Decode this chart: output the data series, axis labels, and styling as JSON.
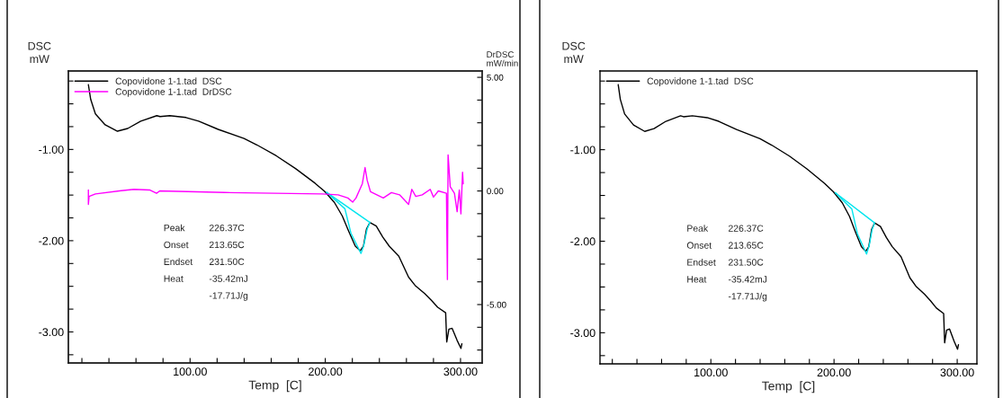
{
  "chart_data": [
    {
      "type": "line",
      "xlabel": "Temp  [C]",
      "ylabel": "DSC\nmW",
      "y2label": "DrDSC\nmW/min",
      "legend": "top left",
      "grid": false,
      "xlim": [
        10,
        316
      ],
      "ylim": [
        -3.34,
        -0.14
      ],
      "y2lim": [
        -7.57,
        5.28
      ],
      "xticks": [
        {
          "value": 20,
          "label": null
        },
        {
          "value": 40,
          "label": null
        },
        {
          "value": 60,
          "label": null
        },
        {
          "value": 80,
          "label": null
        },
        {
          "value": 100,
          "label": "100.00"
        },
        {
          "value": 120,
          "label": null
        },
        {
          "value": 140,
          "label": null
        },
        {
          "value": 160,
          "label": null
        },
        {
          "value": 180,
          "label": null
        },
        {
          "value": 200,
          "label": "200.00"
        },
        {
          "value": 220,
          "label": null
        },
        {
          "value": 240,
          "label": null
        },
        {
          "value": 260,
          "label": null
        },
        {
          "value": 280,
          "label": null
        },
        {
          "value": 300,
          "label": "300.00"
        }
      ],
      "yticks": [
        {
          "value": -3.25,
          "label": null
        },
        {
          "value": -3,
          "label": "-3.00"
        },
        {
          "value": -2.75,
          "label": null
        },
        {
          "value": -2.5,
          "label": null
        },
        {
          "value": -2.25,
          "label": null
        },
        {
          "value": -2,
          "label": "-2.00"
        },
        {
          "value": -1.75,
          "label": null
        },
        {
          "value": -1.5,
          "label": null
        },
        {
          "value": -1.25,
          "label": null
        },
        {
          "value": -1,
          "label": "-1.00"
        },
        {
          "value": -0.75,
          "label": null
        },
        {
          "value": -0.5,
          "label": null
        },
        {
          "value": -0.25,
          "label": null
        }
      ],
      "y2ticks": [
        {
          "value": -7,
          "label": null
        },
        {
          "value": -6,
          "label": null
        },
        {
          "value": -5,
          "label": "-5.00"
        },
        {
          "value": -4,
          "label": null
        },
        {
          "value": -3,
          "label": null
        },
        {
          "value": -2,
          "label": null
        },
        {
          "value": -1,
          "label": null
        },
        {
          "value": 0,
          "label": "0.00"
        },
        {
          "value": 1,
          "label": null
        },
        {
          "value": 2,
          "label": null
        },
        {
          "value": 3,
          "label": null
        },
        {
          "value": 4,
          "label": null
        },
        {
          "value": 5,
          "label": "5.00"
        }
      ],
      "series": [
        {
          "name": "Copovidone 1-1.tad  DSC",
          "color": "#000000",
          "x": [
            24.8,
            26.5,
            30,
            37.2,
            46.3,
            53.9,
            63.5,
            75.4,
            77.8,
            85,
            97,
            106.4,
            120.8,
            139.9,
            149.4,
            163.8,
            178,
            192.4,
            199.5,
            206.7,
            212.6,
            217.4,
            222.2,
            225.8,
            228.2,
            230.5,
            233,
            237.7,
            242.5,
            247.3,
            254.4,
            261.6,
            266.4,
            273.5,
            278.3,
            283.1,
            289,
            289.8,
            291.4,
            293.8,
            297.4,
            300.3,
            301
          ],
          "values": [
            -0.29,
            -0.45,
            -0.61,
            -0.73,
            -0.8,
            -0.77,
            -0.69,
            -0.63,
            -0.64,
            -0.63,
            -0.65,
            -0.69,
            -0.78,
            -0.88,
            -0.95,
            -1.07,
            -1.21,
            -1.37,
            -1.46,
            -1.58,
            -1.73,
            -1.9,
            -2.06,
            -2.11,
            -2.06,
            -1.87,
            -1.8,
            -1.84,
            -1.96,
            -2.06,
            -2.17,
            -2.4,
            -2.49,
            -2.58,
            -2.65,
            -2.73,
            -2.79,
            -3.11,
            -2.97,
            -2.96,
            -3.09,
            -3.18,
            -3.13
          ]
        },
        {
          "name": "Copovidone 1-1.tad  DrDSC",
          "color": "#ff00ff",
          "axis": "y2",
          "x": [
            24.8,
            24.8,
            25.3,
            30,
            49,
            58.5,
            70.4,
            75.2,
            77.6,
            125.5,
            197.6,
            209.5,
            216.7,
            220.3,
            222.7,
            227.4,
            229.4,
            231,
            233.4,
            242.9,
            248.9,
            254.9,
            261.6,
            264,
            266.9,
            271.7,
            277.6,
            280,
            283.6,
            289.6,
            290.3,
            290.8,
            292.4,
            295.5,
            297.5,
            299.1,
            300.3,
            301.5,
            302
          ],
          "values": [
            0.04,
            -0.59,
            -0.24,
            -0.13,
            0.01,
            0.07,
            0.04,
            -0.1,
            0,
            -0.07,
            -0.13,
            -0.17,
            -0.31,
            -0.49,
            -0.31,
            0.32,
            1.03,
            0.46,
            -0.03,
            -0.31,
            -0.07,
            -0.17,
            -0.59,
            0.07,
            -0.24,
            -0.17,
            0.07,
            -0.27,
            0,
            -0.1,
            -3.9,
            1.59,
            0.18,
            -0.1,
            -0.91,
            0.04,
            -1.01,
            0.82,
            0.32
          ]
        },
        {
          "color": "#00e5ee",
          "x": [
            201,
            233
          ],
          "values": [
            -1.47,
            -1.8
          ]
        },
        {
          "color": "#00e5ee",
          "x": [
            201,
            214.5,
            219,
            226.4,
            228.5,
            231,
            233
          ],
          "values": [
            -1.47,
            -1.65,
            -1.92,
            -2.14,
            -2.05,
            -1.87,
            -1.8
          ]
        }
      ],
      "annotations": [
        "Peak",
        "226.37C",
        "Onset",
        "213.65C",
        "Endset",
        "231.50C",
        "Heat",
        "-35.42mJ",
        "-17.71J/g"
      ]
    },
    {
      "type": "line",
      "xlabel": "Temp  [C]",
      "ylabel": "DSC\nmW",
      "legend": "top left",
      "grid": false,
      "xlim": [
        10,
        316
      ],
      "ylim": [
        -3.34,
        -0.14
      ],
      "xticks": [
        {
          "value": 20,
          "label": null
        },
        {
          "value": 40,
          "label": null
        },
        {
          "value": 60,
          "label": null
        },
        {
          "value": 80,
          "label": null
        },
        {
          "value": 100,
          "label": "100.00"
        },
        {
          "value": 120,
          "label": null
        },
        {
          "value": 140,
          "label": null
        },
        {
          "value": 160,
          "label": null
        },
        {
          "value": 180,
          "label": null
        },
        {
          "value": 200,
          "label": "200.00"
        },
        {
          "value": 220,
          "label": null
        },
        {
          "value": 240,
          "label": null
        },
        {
          "value": 260,
          "label": null
        },
        {
          "value": 280,
          "label": null
        },
        {
          "value": 300,
          "label": "300.00"
        }
      ],
      "yticks": [
        {
          "value": -3.25,
          "label": null
        },
        {
          "value": -3,
          "label": "-3.00"
        },
        {
          "value": -2.75,
          "label": null
        },
        {
          "value": -2.5,
          "label": null
        },
        {
          "value": -2.25,
          "label": null
        },
        {
          "value": -2,
          "label": "-2.00"
        },
        {
          "value": -1.75,
          "label": null
        },
        {
          "value": -1.5,
          "label": null
        },
        {
          "value": -1.25,
          "label": null
        },
        {
          "value": -1,
          "label": "-1.00"
        },
        {
          "value": -0.75,
          "label": null
        },
        {
          "value": -0.5,
          "label": null
        },
        {
          "value": -0.25,
          "label": null
        }
      ],
      "series": [
        {
          "name": "Copovidone 1-1.tad  DSC",
          "color": "#000000",
          "x": [
            24.8,
            26.5,
            30,
            37.2,
            46.3,
            53.9,
            63.5,
            75.4,
            77.8,
            85,
            97,
            106.4,
            120.8,
            139.9,
            149.4,
            163.8,
            178,
            192.4,
            199.5,
            206.7,
            212.6,
            217.4,
            222.2,
            225.8,
            228.2,
            230.5,
            233,
            237.7,
            242.5,
            247.3,
            254.4,
            261.6,
            266.4,
            273.5,
            278.3,
            283.1,
            289,
            289.8,
            291.4,
            293.8,
            297.4,
            300.3,
            301
          ],
          "values": [
            -0.29,
            -0.45,
            -0.61,
            -0.73,
            -0.8,
            -0.77,
            -0.69,
            -0.63,
            -0.64,
            -0.63,
            -0.65,
            -0.69,
            -0.78,
            -0.88,
            -0.95,
            -1.07,
            -1.21,
            -1.37,
            -1.46,
            -1.58,
            -1.73,
            -1.9,
            -2.06,
            -2.11,
            -2.06,
            -1.87,
            -1.8,
            -1.84,
            -1.96,
            -2.06,
            -2.17,
            -2.4,
            -2.49,
            -2.58,
            -2.65,
            -2.73,
            -2.79,
            -3.11,
            -2.97,
            -2.96,
            -3.09,
            -3.18,
            -3.13
          ]
        },
        {
          "color": "#00e5ee",
          "x": [
            201,
            233
          ],
          "values": [
            -1.47,
            -1.8
          ]
        },
        {
          "color": "#00e5ee",
          "x": [
            201,
            214.5,
            219,
            226.4,
            228.5,
            231,
            233
          ],
          "values": [
            -1.47,
            -1.65,
            -1.92,
            -2.14,
            -2.05,
            -1.87,
            -1.8
          ]
        }
      ],
      "annotations": [
        "Peak",
        "226.37C",
        "Onset",
        "213.65C",
        "Endset",
        "231.50C",
        "Heat",
        "-35.42mJ",
        "-17.71J/g"
      ]
    }
  ]
}
